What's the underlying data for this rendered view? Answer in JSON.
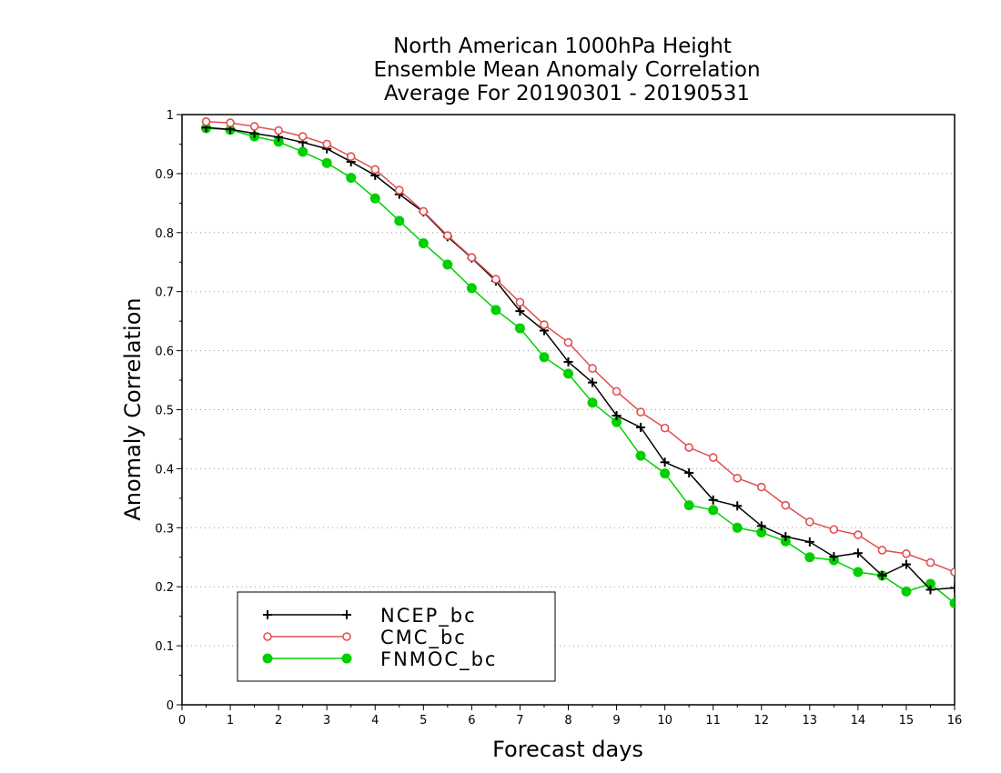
{
  "chart_data": {
    "type": "line",
    "title": [
      "North American 1000hPa Height",
      "Ensemble Mean Anomaly Correlation",
      "Average For 20190301 - 20190531"
    ],
    "xlabel": "Forecast days",
    "ylabel": "Anomaly Correlation",
    "xlim": [
      0,
      16
    ],
    "ylim": [
      0,
      1
    ],
    "xticks": [
      "0",
      "1",
      "2",
      "3",
      "4",
      "5",
      "6",
      "7",
      "8",
      "9",
      "10",
      "11",
      "12",
      "13",
      "14",
      "15",
      "16"
    ],
    "yticks": [
      "0",
      "0.1",
      "0.2",
      "0.3",
      "0.4",
      "0.5",
      "0.6",
      "0.7",
      "0.8",
      "0.9",
      "1"
    ],
    "grid": true,
    "legend_position": "bottom-left",
    "x": [
      0.5,
      1,
      1.5,
      2,
      2.5,
      3,
      3.5,
      4,
      4.5,
      5,
      5.5,
      6,
      6.5,
      7,
      7.5,
      8,
      8.5,
      9,
      9.5,
      10,
      10.5,
      11,
      11.5,
      12,
      12.5,
      13,
      13.5,
      14,
      14.5,
      15,
      15.5,
      16
    ],
    "series": [
      {
        "name": "NCEP_bc",
        "color": "#000000",
        "marker": "plus",
        "values": [
          0.978,
          0.975,
          0.968,
          0.962,
          0.953,
          0.942,
          0.92,
          0.897,
          0.865,
          0.835,
          0.793,
          0.757,
          0.718,
          0.667,
          0.634,
          0.581,
          0.546,
          0.49,
          0.47,
          0.411,
          0.393,
          0.347,
          0.337,
          0.303,
          0.285,
          0.276,
          0.251,
          0.257,
          0.219,
          0.238,
          0.195,
          0.198
        ]
      },
      {
        "name": "CMC_bc",
        "color": "#e05050",
        "marker": "open-circle",
        "values": [
          0.988,
          0.986,
          0.98,
          0.973,
          0.963,
          0.95,
          0.929,
          0.907,
          0.872,
          0.836,
          0.795,
          0.758,
          0.721,
          0.682,
          0.644,
          0.614,
          0.57,
          0.531,
          0.496,
          0.469,
          0.436,
          0.419,
          0.384,
          0.369,
          0.338,
          0.31,
          0.297,
          0.288,
          0.262,
          0.256,
          0.241,
          0.225
        ]
      },
      {
        "name": "FNMOC_bc",
        "color": "#00d000",
        "marker": "filled-circle",
        "values": [
          0.977,
          0.974,
          0.963,
          0.954,
          0.937,
          0.918,
          0.893,
          0.858,
          0.82,
          0.782,
          0.746,
          0.706,
          0.669,
          0.638,
          0.589,
          0.561,
          0.512,
          0.479,
          0.422,
          0.392,
          0.338,
          0.33,
          0.3,
          0.292,
          0.277,
          0.25,
          0.245,
          0.225,
          0.219,
          0.192,
          0.205,
          0.172
        ]
      }
    ]
  }
}
